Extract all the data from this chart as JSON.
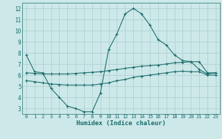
{
  "xlabel": "Humidex (Indice chaleur)",
  "background_color": "#cce8e8",
  "grid_color": "#aacccc",
  "line_color": "#1a6b6b",
  "x_ticks": [
    0,
    1,
    2,
    3,
    4,
    5,
    6,
    7,
    8,
    9,
    10,
    11,
    12,
    13,
    14,
    15,
    16,
    17,
    18,
    19,
    20,
    21,
    22,
    23
  ],
  "y_ticks": [
    3,
    4,
    5,
    6,
    7,
    8,
    9,
    10,
    11,
    12
  ],
  "ylim": [
    2.5,
    12.5
  ],
  "xlim": [
    -0.5,
    23.5
  ],
  "line1_x": [
    0,
    1,
    2,
    3,
    4,
    5,
    6,
    7,
    8,
    9,
    10,
    11,
    12,
    13,
    14,
    15,
    16,
    17,
    18,
    19,
    20,
    21,
    22,
    23
  ],
  "line1_y": [
    7.8,
    6.3,
    6.2,
    4.8,
    4.0,
    3.2,
    3.0,
    2.7,
    2.7,
    4.4,
    8.3,
    9.7,
    11.5,
    12.0,
    11.5,
    10.5,
    9.2,
    8.7,
    7.8,
    7.3,
    7.2,
    6.5,
    6.1,
    6.2
  ],
  "line2_x": [
    0,
    1,
    2,
    3,
    4,
    5,
    6,
    7,
    8,
    9,
    10,
    11,
    12,
    13,
    14,
    15,
    16,
    17,
    18,
    19,
    20,
    21,
    22,
    23
  ],
  "line2_y": [
    6.2,
    6.15,
    6.1,
    6.1,
    6.1,
    6.1,
    6.15,
    6.2,
    6.25,
    6.3,
    6.4,
    6.5,
    6.6,
    6.7,
    6.8,
    6.85,
    6.9,
    7.0,
    7.1,
    7.15,
    7.2,
    7.2,
    6.2,
    6.2
  ],
  "line3_x": [
    0,
    1,
    2,
    3,
    4,
    5,
    6,
    7,
    8,
    9,
    10,
    11,
    12,
    13,
    14,
    15,
    16,
    17,
    18,
    19,
    20,
    21,
    22,
    23
  ],
  "line3_y": [
    5.5,
    5.4,
    5.3,
    5.2,
    5.15,
    5.1,
    5.1,
    5.1,
    5.1,
    5.2,
    5.3,
    5.5,
    5.6,
    5.8,
    5.9,
    6.0,
    6.1,
    6.2,
    6.3,
    6.35,
    6.3,
    6.3,
    6.0,
    6.0
  ]
}
